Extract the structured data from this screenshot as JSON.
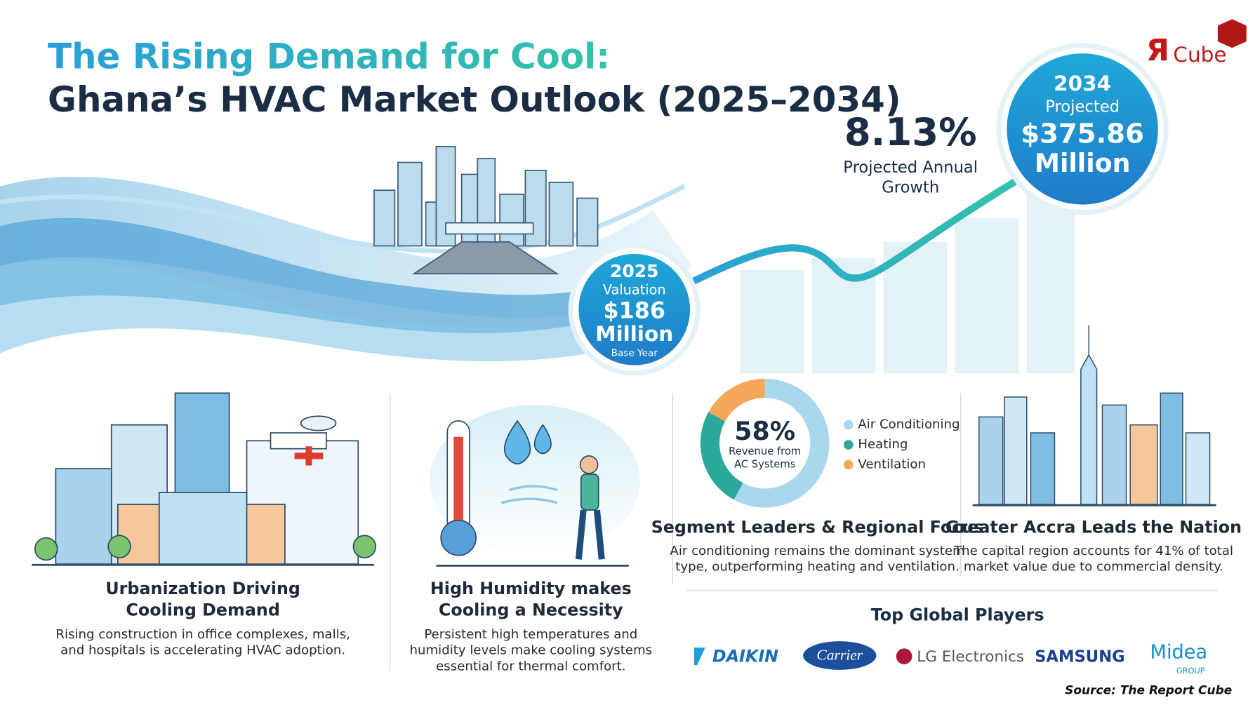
{
  "header": {
    "title_line1": "The Rising Demand for Cool:",
    "title_line2": "Ghana’s HVAC Market Outlook (2025–2034)"
  },
  "logo": {
    "mark": "Я",
    "text": "Cube"
  },
  "growth": {
    "value": "8.13%",
    "caption_lines": [
      "Projected Annual",
      "Growth"
    ]
  },
  "valuation_2025": {
    "year": "2025",
    "label": "Valuation",
    "amount": "$186",
    "unit": "Million",
    "note": "Base Year"
  },
  "projection_2034": {
    "year": "2034",
    "label": "Projected",
    "amount": "$375.86",
    "unit": "Million"
  },
  "cards": [
    {
      "title_lines": [
        "Urbanization Driving",
        "Cooling Demand"
      ],
      "body_lines": [
        "Rising construction in office complexes, malls,",
        "and hospitals is accelerating HVAC adoption."
      ]
    },
    {
      "title_lines": [
        "High Humidity makes",
        "Cooling a Necessity"
      ],
      "body_lines": [
        "Persistent high temperatures and",
        "humidity levels make cooling systems",
        "essential for thermal comfort."
      ]
    },
    {
      "title_lines": [
        "Segment Leaders & Regional Focus"
      ],
      "body_lines": [
        "Air conditioning remains the dominant system",
        "type, outperforming heating and ventilation."
      ]
    },
    {
      "title_lines": [
        "Greater Accra Leads the Nation"
      ],
      "body_lines": [
        "The capital region accounts for 41% of total",
        "market value due to commercial density."
      ]
    }
  ],
  "segment_donut": {
    "center_value": 58,
    "center_value_label": "58%",
    "center_caption_lines": [
      "Revenue from",
      "AC Systems"
    ],
    "series": [
      {
        "name": "Air Conditioning",
        "color": "#a9d8ee",
        "value": 58
      },
      {
        "name": "Heating",
        "color": "#2aa89a",
        "value": 25
      },
      {
        "name": "Ventilation",
        "color": "#f5a85a",
        "value": 17
      }
    ]
  },
  "players": {
    "title": "Top Global Players",
    "logos": [
      "DAIKIN",
      "Carrier",
      "LG Electronics",
      "SAMSUNG",
      "Midea",
      "GROUP"
    ]
  },
  "source": "Source: The Report Cube"
}
